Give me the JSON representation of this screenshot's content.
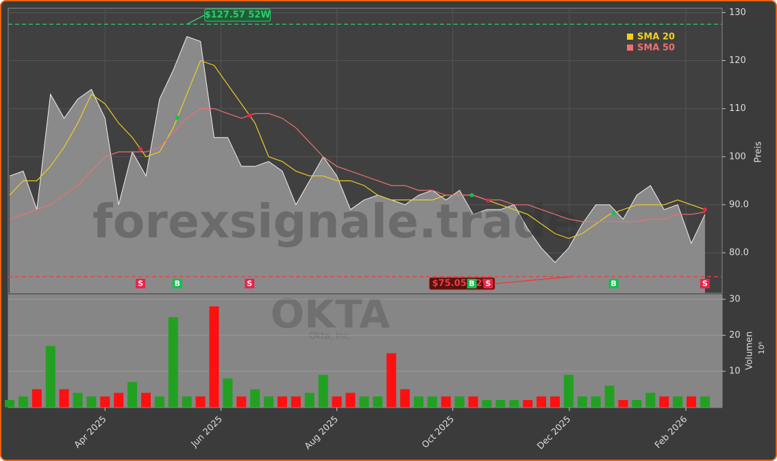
{
  "chart_data": [
    {
      "type": "area",
      "color": "#8a8a8a",
      "line_color": "#f0f0f0",
      "watermark": "forexsignale.trade",
      "symbol": "OKTA",
      "company": "Okta, Inc.",
      "ylabel": "Preis",
      "grid": true,
      "categories": [
        null,
        null,
        null,
        null,
        null,
        null,
        null,
        null,
        null,
        null,
        null,
        null,
        null,
        null,
        null,
        null,
        null,
        null,
        null,
        null,
        null,
        null,
        null,
        null,
        null,
        null,
        null,
        null,
        null,
        null,
        null,
        null,
        null,
        null,
        null,
        null,
        null,
        null,
        null,
        null,
        null,
        null,
        null,
        null,
        null,
        null,
        null,
        null,
        null,
        null,
        null,
        null
      ],
      "values": [
        96,
        97,
        89,
        113,
        108,
        112,
        114,
        108,
        90,
        101,
        96,
        112,
        118,
        125,
        124,
        104,
        104,
        98,
        98,
        99,
        97,
        90,
        95,
        100,
        96,
        89,
        91,
        92,
        91,
        90,
        92,
        93,
        91,
        93,
        88,
        89,
        89,
        90,
        85,
        81,
        78,
        81,
        86,
        90,
        90,
        87,
        92,
        94,
        89,
        90,
        82,
        88
      ],
      "series": [
        {
          "name": "SMA 20",
          "color": "#f0d020",
          "values": [
            92,
            95,
            95,
            98,
            102,
            107,
            113,
            111,
            107,
            104,
            100,
            101,
            106,
            113,
            120,
            119,
            115,
            111,
            107,
            100,
            99,
            97,
            96,
            96,
            95,
            95,
            94,
            92,
            91,
            91,
            91,
            91,
            92,
            92,
            92,
            91,
            90,
            89,
            88,
            86,
            84,
            83,
            84,
            86,
            88,
            89,
            90,
            90,
            90,
            91,
            90,
            89
          ]
        },
        {
          "name": "SMA 50",
          "color": "#f07070",
          "values": [
            87,
            88,
            89,
            90,
            92,
            94,
            97,
            100,
            101,
            101,
            101,
            102,
            105,
            108,
            110,
            110,
            109,
            108,
            109,
            109,
            108,
            106,
            103,
            100,
            98,
            97,
            96,
            95,
            94,
            94,
            93,
            93,
            92,
            92,
            92,
            91,
            91,
            90,
            90,
            89,
            88,
            87,
            86.5,
            86.5,
            86.5,
            86.5,
            86.5,
            87,
            87,
            88,
            88,
            88.5
          ]
        }
      ],
      "high_line": {
        "value": 127.57,
        "label": "$127.57 52W",
        "color": "#2ecc71",
        "at": 13.5
      },
      "low_line": {
        "value": 75.05,
        "label": "$75.05 52W",
        "color": "#e84040",
        "at": 36.8
      },
      "signals": [
        {
          "at": 9.6,
          "label": "S"
        },
        {
          "at": 12.3,
          "label": "B"
        },
        {
          "at": 17.6,
          "label": "S"
        },
        {
          "at": 33.9,
          "label": "B"
        },
        {
          "at": 35.1,
          "label": "S"
        },
        {
          "at": 44.3,
          "label": "B"
        },
        {
          "at": 51,
          "label": "S"
        }
      ],
      "ylim": [
        71.6,
        130.9
      ],
      "yticks": [
        {
          "value": 80,
          "label": "80.0"
        },
        {
          "value": 90,
          "label": "90.0"
        },
        100,
        110,
        120,
        130
      ]
    },
    {
      "type": "bar",
      "ylabel": "Volumen",
      "unit": "10⁶",
      "up_color": "#22a022",
      "down_color": "#ff1010",
      "values": [
        2,
        3,
        5,
        17,
        5,
        4,
        3,
        3,
        4,
        7,
        4,
        3,
        25,
        3,
        3,
        28,
        8,
        3,
        5,
        3,
        3,
        3,
        4,
        9,
        3,
        4,
        3,
        3,
        15,
        5,
        3,
        3,
        3,
        3,
        3,
        2,
        2,
        2,
        2,
        3,
        3,
        9,
        3,
        3,
        6,
        2,
        2,
        4,
        3,
        3,
        3,
        3
      ],
      "ylim": [
        0,
        31.3
      ],
      "yticks": [
        10,
        20,
        30
      ],
      "xticks": [
        {
          "value": 7,
          "label": "Apr 2025"
        },
        {
          "value": 15.5,
          "label": "Jun 2025"
        },
        {
          "value": 24,
          "label": "Aug 2025"
        },
        {
          "value": 32.5,
          "label": "Oct 2025"
        },
        {
          "value": 41.05,
          "label": "Dec 2025"
        },
        {
          "value": 49.6,
          "label": "Feb 2026"
        }
      ]
    }
  ]
}
